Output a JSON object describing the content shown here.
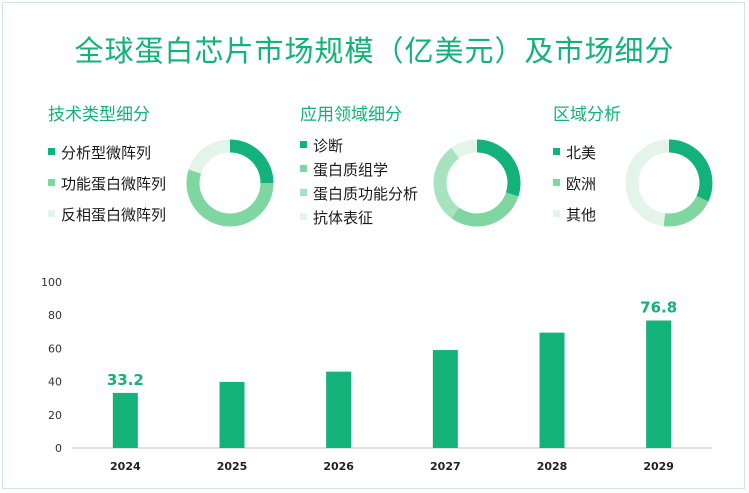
{
  "title": "全球蛋白芯片市场规模（亿美元）及市场细分",
  "colors": {
    "accent": "#12b27a",
    "segment_1": "#12b27a",
    "segment_2": "#7fd6a0",
    "segment_3": "#e3f5e9"
  },
  "panels": [
    {
      "title": "技术类型细分",
      "items": [
        "分析型微阵列",
        "功能蛋白微阵列",
        "反相蛋白微阵列"
      ],
      "shares": [
        0.25,
        0.55,
        0.2
      ]
    },
    {
      "title": "应用领域细分",
      "items": [
        "诊断",
        "蛋白质组学",
        "蛋白质功能分析",
        "抗体表征"
      ],
      "shares": [
        0.3,
        0.3,
        0.3,
        0.1
      ]
    },
    {
      "title": "区域分析",
      "items": [
        "北美",
        "欧洲",
        "其他"
      ],
      "shares": [
        0.32,
        0.2,
        0.48
      ]
    }
  ],
  "chart_data": {
    "type": "bar",
    "categories": [
      "2024",
      "2025",
      "2026",
      "2027",
      "2028",
      "2029"
    ],
    "values": [
      33.2,
      39.8,
      46.0,
      59.0,
      69.5,
      76.8
    ],
    "data_labels": {
      "0": "33.2",
      "5": "76.8"
    },
    "ylim": [
      0,
      100
    ],
    "yticks": [
      "0",
      "20",
      "40",
      "60",
      "80",
      "100"
    ],
    "grid": false,
    "bar_color": "#12b27a",
    "xlabel": "",
    "ylabel": ""
  }
}
